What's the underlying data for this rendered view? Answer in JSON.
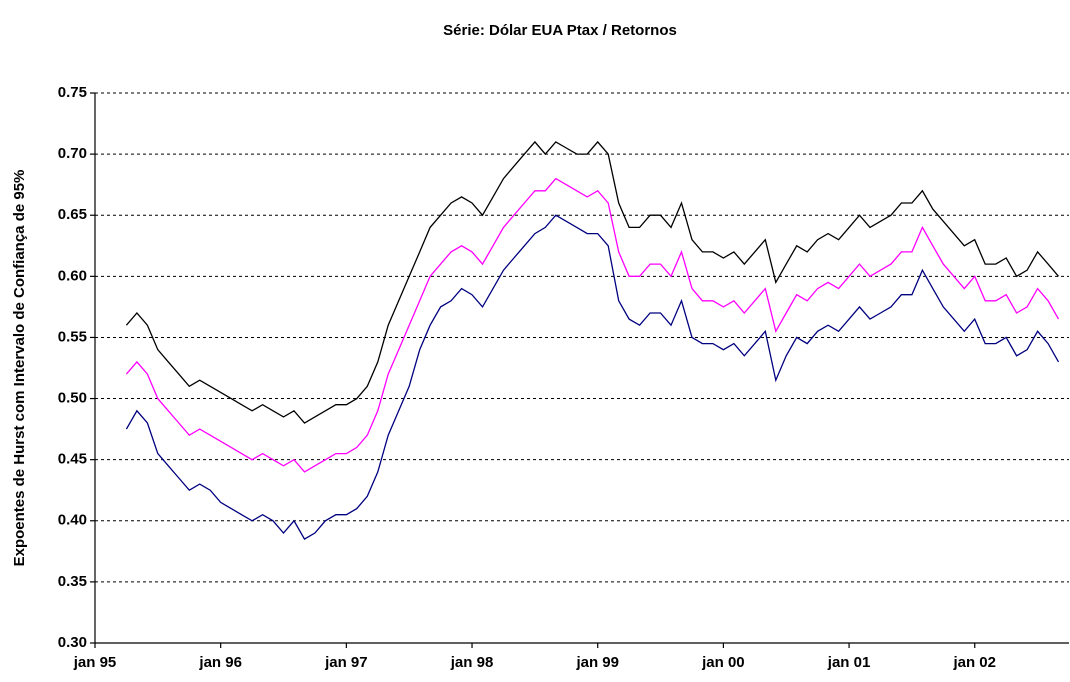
{
  "chart_data": {
    "type": "line",
    "title": "Série: Dólar EUA Ptax / Retornos",
    "y_label": "Expoentes de Hurst com Intervalo de Confiança de 95%",
    "x": [
      "1995-04",
      "1995-05",
      "1995-06",
      "1995-07",
      "1995-08",
      "1995-09",
      "1995-10",
      "1995-11",
      "1995-12",
      "1996-01",
      "1996-02",
      "1996-03",
      "1996-04",
      "1996-05",
      "1996-06",
      "1996-07",
      "1996-08",
      "1996-09",
      "1996-10",
      "1996-11",
      "1996-12",
      "1997-01",
      "1997-02",
      "1997-03",
      "1997-04",
      "1997-05",
      "1997-06",
      "1997-07",
      "1997-08",
      "1997-09",
      "1997-10",
      "1997-11",
      "1997-12",
      "1998-01",
      "1998-02",
      "1998-03",
      "1998-04",
      "1998-05",
      "1998-06",
      "1998-07",
      "1998-08",
      "1998-09",
      "1998-10",
      "1998-11",
      "1998-12",
      "1999-01",
      "1999-02",
      "1999-03",
      "1999-04",
      "1999-05",
      "1999-06",
      "1999-07",
      "1999-08",
      "1999-09",
      "1999-10",
      "1999-11",
      "1999-12",
      "2000-01",
      "2000-02",
      "2000-03",
      "2000-04",
      "2000-05",
      "2000-06",
      "2000-07",
      "2000-08",
      "2000-09",
      "2000-10",
      "2000-11",
      "2000-12",
      "2001-01",
      "2001-02",
      "2001-03",
      "2001-04",
      "2001-05",
      "2001-06",
      "2001-07",
      "2001-08",
      "2001-09",
      "2001-10",
      "2001-11",
      "2001-12",
      "2002-01",
      "2002-02",
      "2002-03",
      "2002-04",
      "2002-05",
      "2002-06",
      "2002-07",
      "2002-08",
      "2002-09"
    ],
    "series": [
      {
        "color": "#000000",
        "values": [
          0.56,
          0.57,
          0.56,
          0.54,
          0.53,
          0.52,
          0.51,
          0.515,
          0.51,
          0.505,
          0.5,
          0.495,
          0.49,
          0.495,
          0.49,
          0.485,
          0.49,
          0.48,
          0.485,
          0.49,
          0.495,
          0.495,
          0.5,
          0.51,
          0.53,
          0.56,
          0.58,
          0.6,
          0.62,
          0.64,
          0.65,
          0.66,
          0.665,
          0.66,
          0.65,
          0.665,
          0.68,
          0.69,
          0.7,
          0.71,
          0.7,
          0.71,
          0.705,
          0.7,
          0.7,
          0.71,
          0.7,
          0.66,
          0.64,
          0.64,
          0.65,
          0.65,
          0.64,
          0.66,
          0.63,
          0.62,
          0.62,
          0.615,
          0.62,
          0.61,
          0.62,
          0.63,
          0.595,
          0.61,
          0.625,
          0.62,
          0.63,
          0.635,
          0.63,
          0.64,
          0.65,
          0.64,
          0.645,
          0.65,
          0.66,
          0.66,
          0.67,
          0.655,
          0.645,
          0.635,
          0.625,
          0.63,
          0.61,
          0.61,
          0.615,
          0.6,
          0.605,
          0.62,
          0.61,
          0.6
        ]
      },
      {
        "color": "#ff00ff",
        "values": [
          0.52,
          0.53,
          0.52,
          0.5,
          0.49,
          0.48,
          0.47,
          0.475,
          0.47,
          0.465,
          0.46,
          0.455,
          0.45,
          0.455,
          0.45,
          0.445,
          0.45,
          0.44,
          0.445,
          0.45,
          0.455,
          0.455,
          0.46,
          0.47,
          0.49,
          0.52,
          0.54,
          0.56,
          0.58,
          0.6,
          0.61,
          0.62,
          0.625,
          0.62,
          0.61,
          0.625,
          0.64,
          0.65,
          0.66,
          0.67,
          0.67,
          0.68,
          0.675,
          0.67,
          0.665,
          0.67,
          0.66,
          0.62,
          0.6,
          0.6,
          0.61,
          0.61,
          0.6,
          0.62,
          0.59,
          0.58,
          0.58,
          0.575,
          0.58,
          0.57,
          0.58,
          0.59,
          0.555,
          0.57,
          0.585,
          0.58,
          0.59,
          0.595,
          0.59,
          0.6,
          0.61,
          0.6,
          0.605,
          0.61,
          0.62,
          0.62,
          0.64,
          0.625,
          0.61,
          0.6,
          0.59,
          0.6,
          0.58,
          0.58,
          0.585,
          0.57,
          0.575,
          0.59,
          0.58,
          0.565
        ]
      },
      {
        "color": "#000080",
        "values": [
          0.475,
          0.49,
          0.48,
          0.455,
          0.445,
          0.435,
          0.425,
          0.43,
          0.425,
          0.415,
          0.41,
          0.405,
          0.4,
          0.405,
          0.4,
          0.39,
          0.4,
          0.385,
          0.39,
          0.4,
          0.405,
          0.405,
          0.41,
          0.42,
          0.44,
          0.47,
          0.49,
          0.51,
          0.54,
          0.56,
          0.575,
          0.58,
          0.59,
          0.585,
          0.575,
          0.59,
          0.605,
          0.615,
          0.625,
          0.635,
          0.64,
          0.65,
          0.645,
          0.64,
          0.635,
          0.635,
          0.625,
          0.58,
          0.565,
          0.56,
          0.57,
          0.57,
          0.56,
          0.58,
          0.55,
          0.545,
          0.545,
          0.54,
          0.545,
          0.535,
          0.545,
          0.555,
          0.515,
          0.535,
          0.55,
          0.545,
          0.555,
          0.56,
          0.555,
          0.565,
          0.575,
          0.565,
          0.57,
          0.575,
          0.585,
          0.585,
          0.605,
          0.59,
          0.575,
          0.565,
          0.555,
          0.565,
          0.545,
          0.545,
          0.55,
          0.535,
          0.54,
          0.555,
          0.545,
          0.53
        ]
      }
    ],
    "xlim": [
      "1995-01",
      "2002-10"
    ],
    "xticks": [
      {
        "value": "1995-01",
        "label": "jan 95"
      },
      {
        "value": "1996-01",
        "label": "jan 96"
      },
      {
        "value": "1997-01",
        "label": "jan 97"
      },
      {
        "value": "1998-01",
        "label": "jan 98"
      },
      {
        "value": "1999-01",
        "label": "jan 99"
      },
      {
        "value": "2000-01",
        "label": "jan 00"
      },
      {
        "value": "2001-01",
        "label": "jan 01"
      },
      {
        "value": "2002-01",
        "label": "jan 02"
      }
    ],
    "ylim": [
      0.3,
      0.75
    ],
    "yticks": [
      {
        "value": 0.3,
        "label": "0.30"
      },
      0.35,
      {
        "value": 0.4,
        "label": "0.40"
      },
      0.45,
      {
        "value": 0.5,
        "label": "0.50"
      },
      0.55,
      {
        "value": 0.6,
        "label": "0.60"
      },
      0.65,
      {
        "value": 0.7,
        "label": "0.70"
      },
      0.75
    ],
    "grid": true
  }
}
